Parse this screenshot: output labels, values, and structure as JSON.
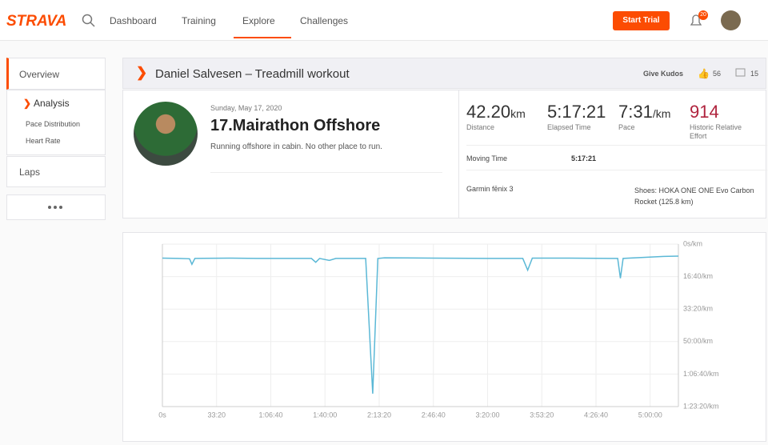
{
  "nav": {
    "logo": "STRAVA",
    "items": [
      "Dashboard",
      "Training",
      "Explore",
      "Challenges"
    ],
    "start_trial": "Start Trial",
    "notifications": 20
  },
  "sidebar": {
    "overview": "Overview",
    "analysis": "Analysis",
    "pace_distribution": "Pace Distribution",
    "heart_rate": "Heart Rate",
    "laps": "Laps"
  },
  "activity": {
    "header": "Daniel Salvesen – Treadmill workout",
    "give_kudos": "Give Kudos",
    "kudos": 56,
    "comments": 15,
    "date": "Sunday, May 17, 2020",
    "title": "17.Mairathon Offshore",
    "description": "Running offshore in cabin. No other place to run.",
    "stats": [
      {
        "value": "42.20",
        "unit": "km",
        "label": "Distance"
      },
      {
        "value": "5:17:21",
        "label": "Elapsed Time"
      },
      {
        "value": "7:31",
        "unit": "/km",
        "label": "Pace"
      },
      {
        "value": "914",
        "label": "Historic Relative Effort"
      }
    ],
    "moving_time_label": "Moving Time",
    "moving_time": "5:17:21",
    "device": "Garmin fēnix 3",
    "shoes": "Shoes: HOKA ONE ONE Evo Carbon Rocket (125.8 km)"
  },
  "chart_data": {
    "type": "line",
    "color": "#5bb8d6",
    "grid": true,
    "x": [
      0,
      600,
      1000,
      1090,
      1200,
      2500,
      3500,
      5500,
      5660,
      5800,
      6160,
      6400,
      7500,
      7760,
      7950,
      8200,
      10000,
      12000,
      13300,
      13480,
      13650,
      15000,
      16800,
      16900,
      17000,
      18500,
      19041
    ],
    "values": [
      430,
      440,
      450,
      620,
      440,
      430,
      440,
      440,
      560,
      440,
      500,
      440,
      440,
      4600,
      440,
      420,
      430,
      440,
      440,
      800,
      430,
      430,
      440,
      1050,
      440,
      380,
      370
    ],
    "xlim": [
      0,
      19041
    ],
    "ylim": [
      5000,
      0
    ],
    "xticks": [
      {
        "value": 0,
        "label": "0s"
      },
      {
        "value": 2000,
        "label": "33:20"
      },
      {
        "value": 4000,
        "label": "1:06:40"
      },
      {
        "value": 6000,
        "label": "1:40:00"
      },
      {
        "value": 8000,
        "label": "2:13:20"
      },
      {
        "value": 10000,
        "label": "2:46:40"
      },
      {
        "value": 12000,
        "label": "3:20:00"
      },
      {
        "value": 14000,
        "label": "3:53:20"
      },
      {
        "value": 16000,
        "label": "4:26:40"
      },
      {
        "value": 18000,
        "label": "5:00:00"
      }
    ],
    "yticks": [
      {
        "value": 0,
        "label": "0s/km"
      },
      {
        "value": 1000,
        "label": "16:40/km"
      },
      {
        "value": 2000,
        "label": "33:20/km"
      },
      {
        "value": 3000,
        "label": "50:00/km"
      },
      {
        "value": 4000,
        "label": "1:06:40/km"
      },
      {
        "value": 5000,
        "label": "1:23:20/km"
      }
    ]
  }
}
